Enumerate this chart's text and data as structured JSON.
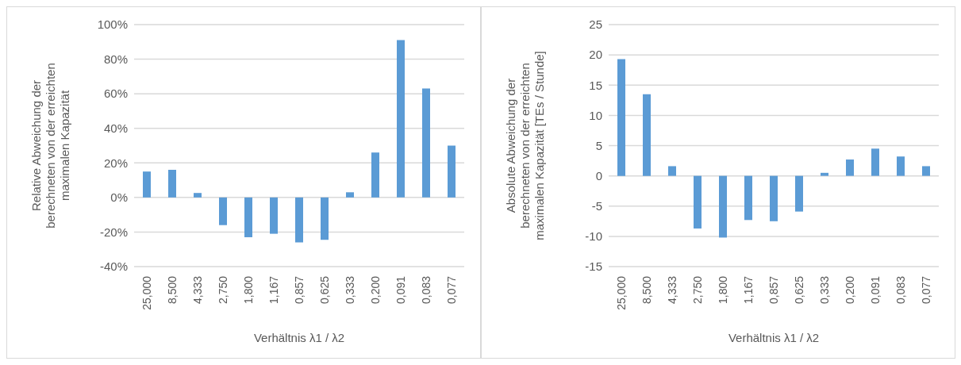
{
  "chart_data": [
    {
      "type": "bar",
      "categories": [
        "25,000",
        "8,500",
        "4,333",
        "2,750",
        "1,800",
        "1,167",
        "0,857",
        "0,625",
        "0,333",
        "0,200",
        "0,091",
        "0,083",
        "0,077"
      ],
      "values": [
        15,
        16,
        2.6,
        -16,
        -23,
        -21,
        -26,
        -24.5,
        3,
        26,
        91,
        63,
        30
      ],
      "color": "#5b9bd5",
      "ylabel": "Relative Abweichung der berechneten von der erreichten maximalen Kapazität",
      "xlabel": "Verhältnis λ1 / λ2",
      "ylim": [
        -40,
        100
      ],
      "yticks": [
        {
          "value": -40,
          "label": "-40%"
        },
        {
          "value": -20,
          "label": "-20%"
        },
        {
          "value": 0,
          "label": "0%"
        },
        {
          "value": 20,
          "label": "20%"
        },
        {
          "value": 40,
          "label": "40%"
        },
        {
          "value": 60,
          "label": "60%"
        },
        {
          "value": 80,
          "label": "80%"
        },
        {
          "value": 100,
          "label": "100%"
        }
      ],
      "grid": "y"
    },
    {
      "type": "bar",
      "categories": [
        "25,000",
        "8,500",
        "4,333",
        "2,750",
        "1,800",
        "1,167",
        "0,857",
        "0,625",
        "0,333",
        "0,200",
        "0,091",
        "0,083",
        "0,077"
      ],
      "values": [
        19.3,
        13.5,
        1.6,
        -8.7,
        -10.2,
        -7.3,
        -7.5,
        -5.9,
        0.5,
        2.7,
        4.5,
        3.2,
        1.6
      ],
      "color": "#5b9bd5",
      "ylabel": "Absolute Abweichung der berechneten von der erreichten maximalen Kapazität [TEs / Stunde]",
      "xlabel": "Verhältnis λ1 / λ2",
      "ylim": [
        -15,
        25
      ],
      "yticks": [
        -15,
        -10,
        -5,
        0,
        5,
        10,
        15,
        20,
        25
      ],
      "grid": "y"
    }
  ]
}
